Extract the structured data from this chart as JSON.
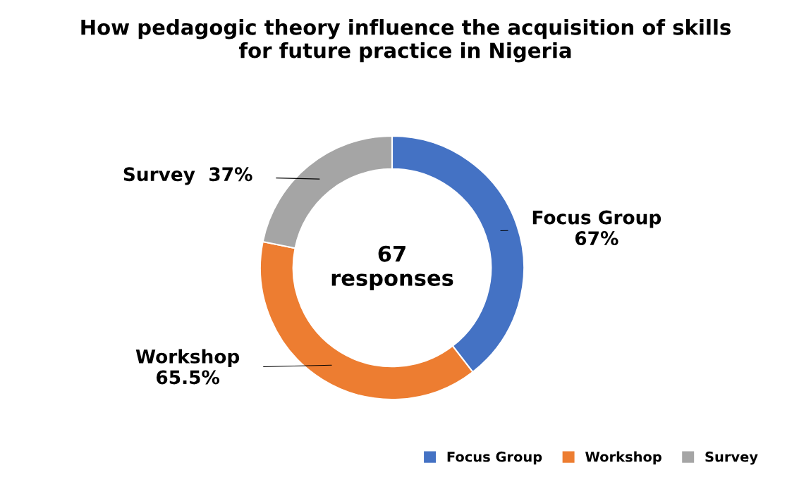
{
  "chart_data": {
    "type": "donut",
    "title": "How pedagogic theory influence the acquisition of skills\nfor future practice in Nigeria",
    "categories": [
      "Focus Group",
      "Workshop",
      "Survey"
    ],
    "values": [
      67,
      65.5,
      37
    ],
    "colors": [
      "#4472c4",
      "#ed7d31",
      "#a5a5a5"
    ],
    "value_labels": [
      "67%",
      "65.5%",
      "37%"
    ],
    "annotations": [
      "67\nresponses"
    ],
    "legend": "bottom right"
  }
}
